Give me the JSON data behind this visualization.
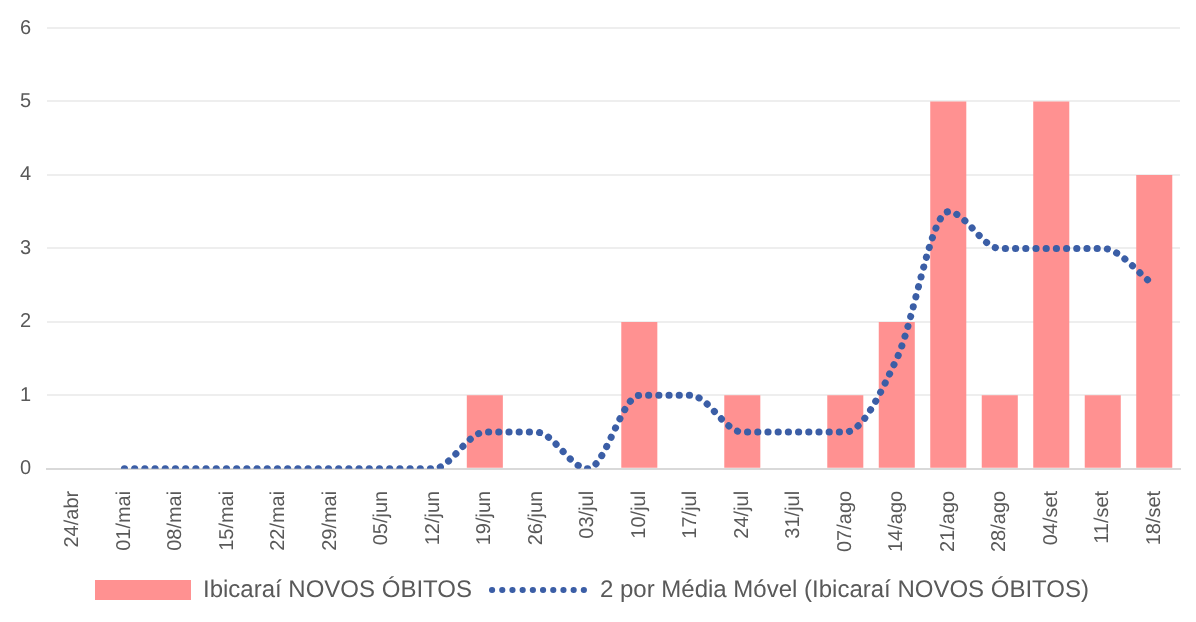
{
  "chart_data": {
    "type": "bar",
    "categories": [
      "24/abr",
      "01/mai",
      "08/mai",
      "15/mai",
      "22/mai",
      "29/mai",
      "05/jun",
      "12/jun",
      "19/jun",
      "26/jun",
      "03/jul",
      "10/jul",
      "17/jul",
      "24/jul",
      "31/jul",
      "07/ago",
      "14/ago",
      "21/ago",
      "28/ago",
      "04/set",
      "11/set",
      "18/set"
    ],
    "series": [
      {
        "name": "Ibicaraí NOVOS ÓBITOS",
        "color": "#ff9191",
        "values": [
          0,
          0,
          0,
          0,
          0,
          0,
          0,
          0,
          1,
          0,
          0,
          2,
          0,
          1,
          0,
          1,
          2,
          5,
          1,
          5,
          1,
          4
        ]
      },
      {
        "name": "2 por Média Móvel (Ibicaraí NOVOS ÓBITOS)",
        "type": "line",
        "color": "#3b5ea6",
        "line_style": "dotted",
        "values": [
          null,
          0,
          0,
          0,
          0,
          0,
          0,
          0,
          0.5,
          0.5,
          0,
          1,
          1,
          0.5,
          0.5,
          0.5,
          1.5,
          3.5,
          3,
          3,
          3,
          2.5
        ]
      }
    ],
    "ylim": [
      0,
      6
    ],
    "yticks": [
      0,
      1,
      2,
      3,
      4,
      5,
      6
    ],
    "grid": "y",
    "legend": "bottom",
    "marker": "none"
  }
}
